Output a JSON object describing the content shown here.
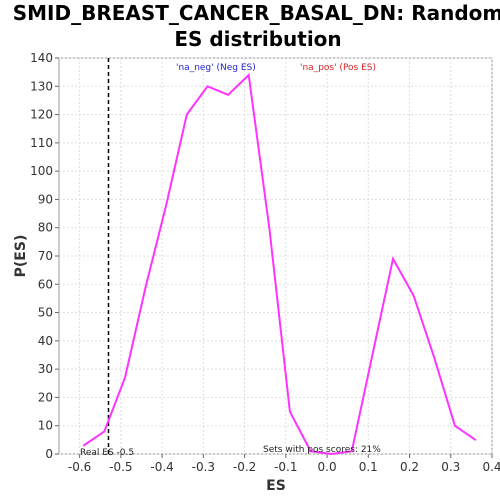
{
  "chart_data": {
    "type": "line",
    "title_lines": [
      "SMID_BREAST_CANCER_BASAL_DN: Random",
      "ES distribution"
    ],
    "xlabel": "ES",
    "ylabel": "P(ES)",
    "xlim": [
      -0.65,
      0.4
    ],
    "ylim": [
      0,
      140
    ],
    "xticks": [
      -0.6,
      -0.5,
      -0.4,
      -0.3,
      -0.2,
      -0.1,
      0.0,
      0.1,
      0.2,
      0.3,
      0.4
    ],
    "xtick_labels": [
      "-0.6",
      "-0.5",
      "-0.4",
      "-0.3",
      "-0.2",
      "-0.1",
      "0.0",
      "0.1",
      "0.2",
      "0.3",
      "0.4"
    ],
    "yticks": [
      0,
      10,
      20,
      30,
      40,
      50,
      60,
      70,
      80,
      90,
      100,
      110,
      120,
      130,
      140
    ],
    "ytick_labels": [
      "0",
      "10",
      "20",
      "30",
      "40",
      "50",
      "60",
      "70",
      "80",
      "90",
      "100",
      "110",
      "120",
      "130",
      "140"
    ],
    "grid": true,
    "series": [
      {
        "color": "#ff33ff",
        "x": [
          -0.59,
          -0.54,
          -0.49,
          -0.44,
          -0.39,
          -0.34,
          -0.29,
          -0.24,
          -0.19,
          -0.14,
          -0.09,
          -0.04,
          0.01,
          0.06,
          0.11,
          0.16,
          0.21,
          0.26,
          0.31,
          0.36
        ],
        "y": [
          3,
          8,
          27,
          59,
          88,
          120,
          130,
          127,
          134,
          80,
          15,
          1,
          0,
          1,
          35,
          69,
          56,
          34,
          10,
          5
        ]
      }
    ],
    "real_es": -0.53,
    "real_es_label": "Real ES -0.5",
    "pos_scores_label": "Sets with pos scores: 21%",
    "legend": [
      {
        "label": "'na_neg' (Neg ES)",
        "color": "#2222cc"
      },
      {
        "label": "'na_pos' (Pos ES)",
        "color": "#dd2222"
      }
    ]
  }
}
